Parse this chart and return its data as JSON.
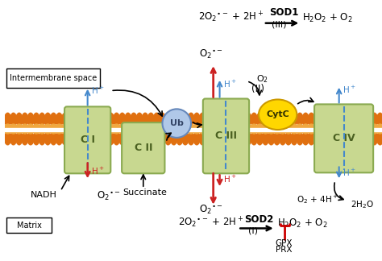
{
  "bg_color": "#ffffff",
  "complex_fill": "#C8D890",
  "complex_edge": "#8AAA50",
  "ub_fill": "#B0C8E8",
  "ub_edge": "#6688BB",
  "cytc_fill": "#FFD700",
  "cytc_edge": "#CC9900",
  "membrane_orange": "#E07010",
  "membrane_light": "#F0A840",
  "intermembrane_label": "Intermembrane space",
  "matrix_label": "Matrix",
  "CI_label": "C I",
  "CII_label": "C II",
  "CIII_label": "C III",
  "CIV_label": "C IV",
  "Ub_label": "Ub",
  "CytC_label": "CytC",
  "NADH_label": "NADH",
  "succinate_label": "Succinate",
  "H_plus": "H$^+$",
  "o2_label": "O$_2$",
  "II_label": "(II)",
  "GPX_label": "GPX",
  "PRX_label": "PRX",
  "sod1_label": "SOD1",
  "sod2_label": "SOD2"
}
